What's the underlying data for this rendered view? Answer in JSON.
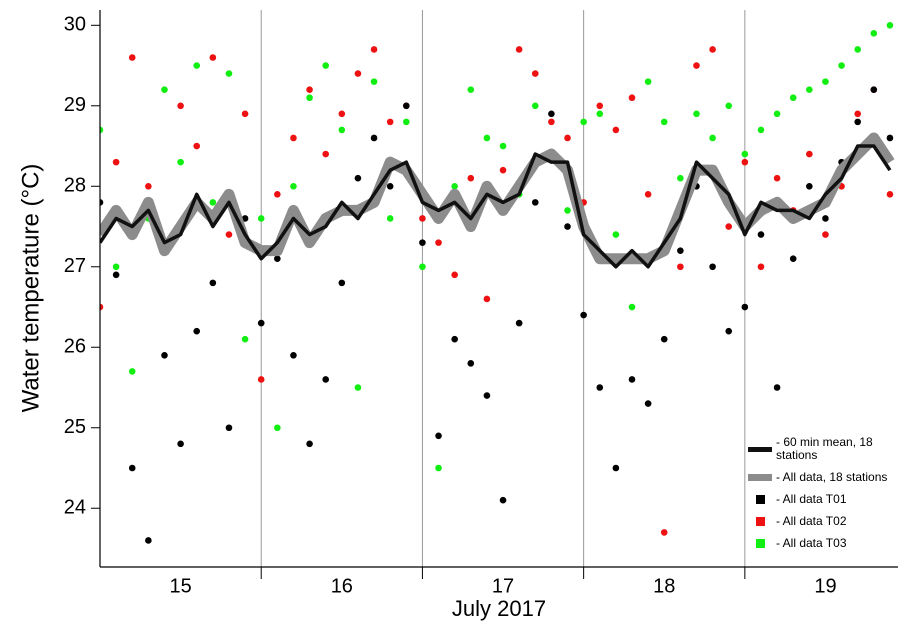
{
  "chart_data": {
    "type": "scatter",
    "y_label": "Water temperature (°C)",
    "x_label": "July 2017",
    "xlim": [
      15,
      19.95
    ],
    "ylim": [
      23.27,
      30.19
    ],
    "yticks": [
      24,
      25,
      26,
      27,
      28,
      29,
      30
    ],
    "xticks": [
      {
        "value": 15.5,
        "label": "15"
      },
      {
        "value": 16.5,
        "label": "16"
      },
      {
        "value": 17.5,
        "label": "17"
      },
      {
        "value": 18.5,
        "label": "18"
      },
      {
        "value": 19.5,
        "label": "19"
      }
    ],
    "day_boundaries": [
      16,
      17,
      18,
      19
    ],
    "series": [
      {
        "name": "- 60 min mean, 18 stations",
        "kind": "line",
        "color": "#111111",
        "x": [
          15.0,
          15.1,
          15.2,
          15.3,
          15.4,
          15.5,
          15.6,
          15.7,
          15.8,
          15.9,
          16.0,
          16.1,
          16.2,
          16.3,
          16.4,
          16.5,
          16.6,
          16.7,
          16.8,
          16.9,
          17.0,
          17.1,
          17.2,
          17.3,
          17.4,
          17.5,
          17.6,
          17.7,
          17.8,
          17.9,
          18.0,
          18.1,
          18.2,
          18.3,
          18.4,
          18.5,
          18.6,
          18.7,
          18.8,
          18.9,
          19.0,
          19.1,
          19.2,
          19.3,
          19.4,
          19.5,
          19.6,
          19.7,
          19.8,
          19.9
        ],
        "values": [
          27.3,
          27.6,
          27.5,
          27.7,
          27.3,
          27.4,
          27.9,
          27.5,
          27.8,
          27.4,
          27.1,
          27.3,
          27.6,
          27.4,
          27.5,
          27.8,
          27.6,
          27.9,
          28.2,
          28.3,
          27.8,
          27.7,
          27.8,
          27.6,
          27.9,
          27.8,
          27.9,
          28.4,
          28.3,
          28.3,
          27.4,
          27.2,
          27.0,
          27.2,
          27.0,
          27.3,
          27.6,
          28.3,
          28.1,
          27.9,
          27.4,
          27.8,
          27.7,
          27.7,
          27.6,
          27.9,
          28.1,
          28.5,
          28.5,
          28.2
        ]
      },
      {
        "name": "- All data, 18 stations",
        "kind": "band",
        "color": "#8c8c8c",
        "x": [
          15.0,
          15.1,
          15.2,
          15.3,
          15.4,
          15.5,
          15.6,
          15.7,
          15.8,
          15.9,
          16.0,
          16.1,
          16.2,
          16.3,
          16.4,
          16.5,
          16.6,
          16.7,
          16.8,
          16.9,
          17.0,
          17.1,
          17.2,
          17.3,
          17.4,
          17.5,
          17.6,
          17.7,
          17.8,
          17.9,
          18.0,
          18.1,
          18.2,
          18.3,
          18.4,
          18.5,
          18.6,
          18.7,
          18.8,
          18.9,
          19.0,
          19.1,
          19.2,
          19.3,
          19.4,
          19.5,
          19.6,
          19.7,
          19.8,
          19.9
        ],
        "values": [
          27.4,
          27.7,
          27.4,
          27.8,
          27.2,
          27.5,
          27.8,
          27.6,
          27.9,
          27.3,
          27.2,
          27.2,
          27.7,
          27.3,
          27.6,
          27.7,
          27.7,
          27.8,
          28.3,
          28.2,
          27.9,
          27.6,
          27.9,
          27.5,
          28.0,
          27.7,
          28.0,
          28.3,
          28.4,
          28.2,
          27.5,
          27.1,
          27.1,
          27.1,
          27.1,
          27.2,
          27.7,
          28.2,
          28.2,
          27.8,
          27.5,
          27.7,
          27.8,
          27.6,
          27.7,
          27.8,
          28.2,
          28.4,
          28.6,
          28.3
        ]
      },
      {
        "name": "- All data T01",
        "kind": "points",
        "color": "#000000",
        "x": [
          15.0,
          15.1,
          15.2,
          15.3,
          15.4,
          15.5,
          15.6,
          15.7,
          15.8,
          15.9,
          16.0,
          16.1,
          16.2,
          16.3,
          16.4,
          16.5,
          16.6,
          16.7,
          16.8,
          16.9,
          17.0,
          17.1,
          17.2,
          17.3,
          17.4,
          17.5,
          17.6,
          17.7,
          17.8,
          17.9,
          18.0,
          18.1,
          18.2,
          18.3,
          18.4,
          18.5,
          18.6,
          18.7,
          18.8,
          18.9,
          19.0,
          19.1,
          19.2,
          19.3,
          19.4,
          19.5,
          19.6,
          19.7,
          19.8,
          19.9
        ],
        "values": [
          27.8,
          26.9,
          24.5,
          23.6,
          25.9,
          24.8,
          26.2,
          26.8,
          25.0,
          27.6,
          26.3,
          27.1,
          25.9,
          24.8,
          25.6,
          26.8,
          28.1,
          28.6,
          28.0,
          29.0,
          27.3,
          24.9,
          26.1,
          25.8,
          25.4,
          24.1,
          26.3,
          27.8,
          28.9,
          27.5,
          26.4,
          25.5,
          24.5,
          25.6,
          25.3,
          26.1,
          27.2,
          28.0,
          27.0,
          26.2,
          26.5,
          27.4,
          25.5,
          27.1,
          28.0,
          27.6,
          28.3,
          28.8,
          29.2,
          28.6
        ]
      },
      {
        "name": "- All data T02",
        "kind": "points",
        "color": "#ee1111",
        "x": [
          15.0,
          15.1,
          15.2,
          15.3,
          15.4,
          15.5,
          15.6,
          15.7,
          15.8,
          15.9,
          16.0,
          16.1,
          16.2,
          16.3,
          16.4,
          16.5,
          16.6,
          16.7,
          16.8,
          16.9,
          17.0,
          17.1,
          17.2,
          17.3,
          17.4,
          17.5,
          17.6,
          17.7,
          17.8,
          17.9,
          18.0,
          18.1,
          18.2,
          18.3,
          18.4,
          18.5,
          18.6,
          18.7,
          18.8,
          18.9,
          19.0,
          19.1,
          19.2,
          19.3,
          19.4,
          19.5,
          19.6,
          19.7,
          19.8,
          19.9
        ],
        "values": [
          26.5,
          28.3,
          29.6,
          28.0,
          27.3,
          29.0,
          28.5,
          29.6,
          27.4,
          28.9,
          25.6,
          27.9,
          28.6,
          29.2,
          28.4,
          28.9,
          29.4,
          29.7,
          28.8,
          29.0,
          27.6,
          27.3,
          26.9,
          28.1,
          26.6,
          28.2,
          29.7,
          29.4,
          28.8,
          28.6,
          27.8,
          29.0,
          28.7,
          29.1,
          27.9,
          23.7,
          27.0,
          29.5,
          29.7,
          27.5,
          28.3,
          27.0,
          28.1,
          27.7,
          28.4,
          27.4,
          28.0,
          28.9,
          29.2,
          27.9
        ]
      },
      {
        "name": "- All data T03",
        "kind": "points",
        "color": "#11ee11",
        "x": [
          15.0,
          15.1,
          15.2,
          15.3,
          15.4,
          15.5,
          15.6,
          15.7,
          15.8,
          15.9,
          16.0,
          16.1,
          16.2,
          16.3,
          16.4,
          16.5,
          16.6,
          16.7,
          16.8,
          16.9,
          17.0,
          17.1,
          17.2,
          17.3,
          17.4,
          17.5,
          17.6,
          17.7,
          17.8,
          17.9,
          18.0,
          18.1,
          18.2,
          18.3,
          18.4,
          18.5,
          18.6,
          18.7,
          18.8,
          18.9,
          19.0,
          19.1,
          19.2,
          19.3,
          19.4,
          19.5,
          19.6,
          19.7,
          19.8,
          19.9
        ],
        "values": [
          28.7,
          27.0,
          25.7,
          27.6,
          29.2,
          28.3,
          29.5,
          27.8,
          29.4,
          26.1,
          27.6,
          25.0,
          28.0,
          29.1,
          29.5,
          28.7,
          25.5,
          29.3,
          27.6,
          28.8,
          27.0,
          24.5,
          28.0,
          29.2,
          28.6,
          28.5,
          27.9,
          29.0,
          28.4,
          27.7,
          28.8,
          28.9,
          27.4,
          26.5,
          29.3,
          28.8,
          28.1,
          28.9,
          28.6,
          29.0,
          28.4,
          28.7,
          28.9,
          29.1,
          29.2,
          29.3,
          29.5,
          29.7,
          29.9,
          30.0
        ]
      }
    ]
  }
}
